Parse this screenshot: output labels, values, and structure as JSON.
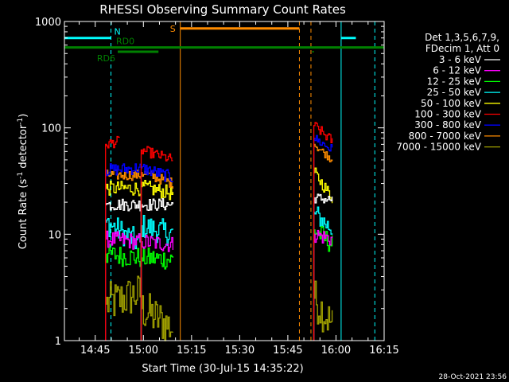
{
  "chart_data": {
    "type": "line",
    "title": "RHESSI Observing Summary Count Rates",
    "xlabel": "Start Time (30-Jul-15 14:35:22)",
    "ylabel_main": "Count Rate (s",
    "ylabel_sup1": "-1",
    "ylabel_mid": " detector",
    "ylabel_sup2": "-1",
    "ylabel_end": ")",
    "yscale": "log",
    "ylim": [
      1,
      1000
    ],
    "xlim_min": [
      35.4,
      135
    ],
    "x_ticks": [
      {
        "m": 45,
        "label": "14:45"
      },
      {
        "m": 60,
        "label": "15:00"
      },
      {
        "m": 75,
        "label": "15:15"
      },
      {
        "m": 90,
        "label": "15:30"
      },
      {
        "m": 105,
        "label": "15:45"
      },
      {
        "m": 120,
        "label": "16:00"
      },
      {
        "m": 135,
        "label": "16:15"
      }
    ],
    "y_ticks": [
      {
        "v": 1,
        "label": "1"
      },
      {
        "v": 10,
        "label": "10"
      },
      {
        "v": 100,
        "label": "100"
      },
      {
        "v": 1000,
        "label": "1000"
      }
    ],
    "legend_title1": "Det 1,3,5,6,7,9,",
    "legend_title2": "FDecim 1, Att 0",
    "series": [
      {
        "name": "3 - 6 keV",
        "color": "#ffffff",
        "segments": [
          {
            "x0": 48.2,
            "x1": 59.3,
            "v0": 19,
            "v1": 19,
            "amp": 0.06
          },
          {
            "x0": 59.3,
            "x1": 69.2,
            "v0": 19,
            "v1": 19,
            "amp": 0.06
          },
          {
            "x0": 113.1,
            "x1": 118.8,
            "v0": 22,
            "v1": 21,
            "amp": 0.05
          }
        ]
      },
      {
        "name": "6 - 12 keV",
        "color": "#ff00ff",
        "segments": [
          {
            "x0": 48.2,
            "x1": 59.3,
            "v0": 9,
            "v1": 8.5,
            "amp": 0.08
          },
          {
            "x0": 59.3,
            "x1": 69.2,
            "v0": 8.5,
            "v1": 8,
            "amp": 0.08
          },
          {
            "x0": 113.1,
            "x1": 118.8,
            "v0": 10,
            "v1": 9,
            "amp": 0.08
          }
        ]
      },
      {
        "name": "12 - 25 keV",
        "color": "#00ff00",
        "segments": [
          {
            "x0": 48.2,
            "x1": 59.3,
            "v0": 6.5,
            "v1": 6,
            "amp": 0.1
          },
          {
            "x0": 59.3,
            "x1": 69.2,
            "v0": 6,
            "v1": 5.8,
            "amp": 0.1
          },
          {
            "x0": 113.1,
            "x1": 118.8,
            "v0": 11,
            "v1": 8,
            "amp": 0.1
          }
        ]
      },
      {
        "name": "25 - 50 keV",
        "color": "#00ffff",
        "segments": [
          {
            "x0": 48.2,
            "x1": 59.3,
            "v0": 13,
            "v1": 8,
            "amp": 0.12
          },
          {
            "x0": 59.3,
            "x1": 69.2,
            "v0": 12,
            "v1": 10,
            "amp": 0.12
          },
          {
            "x0": 113.1,
            "x1": 118.8,
            "v0": 16,
            "v1": 11,
            "amp": 0.1
          }
        ]
      },
      {
        "name": "50 - 100 keV",
        "color": "#ffff00",
        "segments": [
          {
            "x0": 48.2,
            "x1": 59.3,
            "v0": 27,
            "v1": 27,
            "amp": 0.07
          },
          {
            "x0": 59.3,
            "x1": 69.2,
            "v0": 28,
            "v1": 24,
            "amp": 0.07
          },
          {
            "x0": 113.1,
            "x1": 118.8,
            "v0": 38,
            "v1": 22,
            "amp": 0.06
          }
        ]
      },
      {
        "name": "100 - 300 keV",
        "color": "#ff0000",
        "segments": [
          {
            "x0": 48.2,
            "x1": 52.5,
            "v0": 70,
            "v1": 75,
            "amp": 0.05
          },
          {
            "x0": 59.3,
            "x1": 69.2,
            "v0": 62,
            "v1": 50,
            "amp": 0.05
          },
          {
            "x0": 113.1,
            "x1": 118.8,
            "v0": 105,
            "v1": 75,
            "amp": 0.05
          }
        ]
      },
      {
        "name": "300 - 800 keV",
        "color": "#0000ff",
        "segments": [
          {
            "x0": 48.2,
            "x1": 59.3,
            "v0": 40,
            "v1": 42,
            "amp": 0.06
          },
          {
            "x0": 59.3,
            "x1": 69.2,
            "v0": 42,
            "v1": 34,
            "amp": 0.06
          },
          {
            "x0": 113.1,
            "x1": 118.8,
            "v0": 80,
            "v1": 62,
            "amp": 0.05
          }
        ]
      },
      {
        "name": "800 - 7000 keV",
        "color": "#ff8c00",
        "segments": [
          {
            "x0": 48.2,
            "x1": 59.3,
            "v0": 36,
            "v1": 36,
            "amp": 0.05
          },
          {
            "x0": 59.3,
            "x1": 69.2,
            "v0": 38,
            "v1": 30,
            "amp": 0.05
          },
          {
            "x0": 113.1,
            "x1": 118.8,
            "v0": 70,
            "v1": 50,
            "amp": 0.04
          }
        ]
      },
      {
        "name": "7000 - 15000 keV",
        "color": "#a0a000",
        "segments": [
          {
            "x0": 48.2,
            "x1": 59.3,
            "v0": 2.2,
            "v1": 2.8,
            "amp": 0.2
          },
          {
            "x0": 59.3,
            "x1": 69.2,
            "v0": 2.0,
            "v1": 1.3,
            "amp": 0.2
          },
          {
            "x0": 113.1,
            "x1": 118.8,
            "v0": 2.5,
            "v1": 1.4,
            "amp": 0.2
          }
        ]
      }
    ],
    "flags": [
      {
        "name": "N",
        "label": "N",
        "color": "#00ffff",
        "y": 700,
        "segments": [
          [
            35.4,
            49.9
          ],
          [
            121.6,
            126.2
          ]
        ]
      },
      {
        "name": "RD0",
        "label": "RD0",
        "color": "#008000",
        "y": 570,
        "segments": [
          [
            35.4,
            135
          ]
        ]
      },
      {
        "name": "RD6",
        "label": "RD6",
        "color": "#008000",
        "y": 520,
        "segments": [
          [
            52,
            64.7
          ]
        ]
      },
      {
        "name": "S",
        "label": "S",
        "color": "#ff8c00",
        "y": 860,
        "segments": [
          [
            71.5,
            108.6
          ]
        ]
      }
    ],
    "event_lines": [
      {
        "m": 35.4,
        "color": "#00ffff",
        "style": "solid"
      },
      {
        "m": 49.9,
        "color": "#00ffff",
        "style": "dashed"
      },
      {
        "m": 71.5,
        "color": "#ff8c00",
        "style": "solid"
      },
      {
        "m": 108.6,
        "color": "#ff8c00",
        "style": "dashed"
      },
      {
        "m": 112.2,
        "color": "#ff8c00",
        "style": "dashed"
      },
      {
        "m": 121.6,
        "color": "#00ffff",
        "style": "solid"
      },
      {
        "m": 132.1,
        "color": "#00ffff",
        "style": "dashed"
      }
    ]
  },
  "footer_date": "28-Oct-2021 23:56"
}
